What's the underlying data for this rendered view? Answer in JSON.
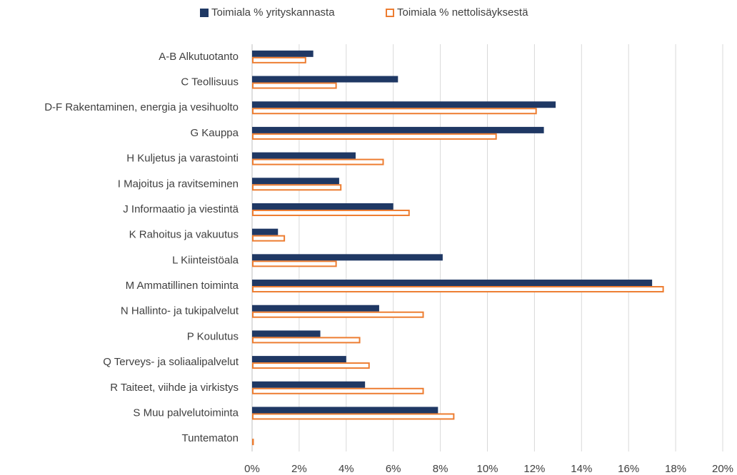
{
  "chart_data": {
    "type": "hbar",
    "categories": [
      "A-B Alkutuotanto",
      "C Teollisuus",
      "D-F Rakentaminen, energia ja vesihuolto",
      "G Kauppa",
      "H Kuljetus ja varastointi",
      "I Majoitus ja ravitseminen",
      "J Informaatio ja viestintä",
      "K Rahoitus ja vakuutus",
      "L Kiinteistöala",
      "M Ammatillinen toiminta",
      "N Hallinto- ja tukipalvelut",
      "P Koulutus",
      "Q Terveys- ja soliaalipalvelut",
      "R Taiteet, viihde ja virkistys",
      "S Muu palvelutoiminta",
      "Tuntematon"
    ],
    "series": [
      {
        "name": "Toimiala % yrityskannasta",
        "color": "#1f3864",
        "style": "filled",
        "values": [
          2.6,
          6.2,
          12.9,
          12.4,
          4.4,
          3.7,
          6.0,
          1.1,
          8.1,
          17.0,
          5.4,
          2.9,
          4.0,
          4.8,
          7.9,
          0
        ]
      },
      {
        "name": "Toimiala % nettolisäyksestä",
        "color": "#ed7d31",
        "style": "outline",
        "values": [
          2.3,
          3.6,
          12.1,
          10.4,
          5.6,
          3.8,
          6.7,
          1.4,
          3.6,
          17.5,
          7.3,
          4.6,
          5.0,
          7.3,
          8.6,
          0.05
        ]
      }
    ],
    "xlim": [
      0,
      20
    ],
    "xticks": [
      {
        "value": 0,
        "label": "0%"
      },
      {
        "value": 2,
        "label": "2%"
      },
      {
        "value": 4,
        "label": "4%"
      },
      {
        "value": 6,
        "label": "6%"
      },
      {
        "value": 8,
        "label": "8%"
      },
      {
        "value": 10,
        "label": "10%"
      },
      {
        "value": 12,
        "label": "12%"
      },
      {
        "value": 14,
        "label": "14%"
      },
      {
        "value": 16,
        "label": "16%"
      },
      {
        "value": 18,
        "label": "18%"
      },
      {
        "value": 20,
        "label": "20%"
      }
    ],
    "grid": true,
    "legend": "top"
  }
}
